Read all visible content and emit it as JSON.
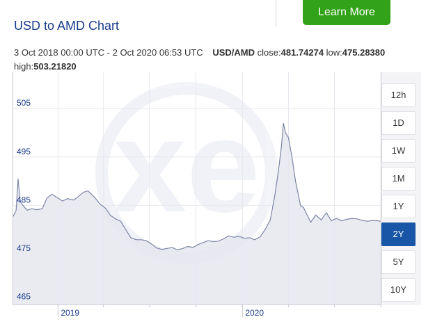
{
  "header": {
    "cta_label": "Learn More"
  },
  "title": "USD to AMD Chart",
  "meta": {
    "period": "3 Oct 2018 00:00 UTC - 2 Oct 2020 06:53 UTC",
    "pair": "USD/AMD",
    "close_label": "close:",
    "close_value": "481.74274",
    "low_label": "low:",
    "low_value": "475.28380",
    "high_label": "high:",
    "high_value": "503.21820"
  },
  "ranges": [
    "12h",
    "1D",
    "1W",
    "1M",
    "1Y",
    "2Y",
    "5Y",
    "10Y"
  ],
  "active_range": "2Y",
  "watermark": "xe",
  "colors": {
    "line": "#7e85a6",
    "fill": "#e6e7ef",
    "accent": "#1a56a8",
    "cta": "#32a318",
    "title": "#1a3c8c"
  },
  "chart_data": {
    "type": "area",
    "title": "USD to AMD Chart",
    "xlabel": "",
    "ylabel": "",
    "ylim": [
      464.5,
      512.5
    ],
    "xlim": [
      "2018-10-03",
      "2020-10-02"
    ],
    "yticks": [
      465,
      475,
      485,
      495,
      505
    ],
    "xticks": [
      {
        "date": "2019-01-01",
        "label": "2019"
      },
      {
        "date": "2020-01-01",
        "label": "2020"
      }
    ],
    "grid": true,
    "legend": "none",
    "series": [
      {
        "x": [
          "2018-10-03",
          "2018-10-10",
          "2018-10-14",
          "2018-10-18",
          "2018-10-25",
          "2018-11-01",
          "2018-11-10",
          "2018-11-20",
          "2018-12-01",
          "2018-12-10",
          "2018-12-20",
          "2019-01-01",
          "2019-01-10",
          "2019-01-20",
          "2019-02-01",
          "2019-02-10",
          "2019-02-20",
          "2019-03-01",
          "2019-03-15",
          "2019-03-25",
          "2019-04-05",
          "2019-04-15",
          "2019-04-25",
          "2019-05-05",
          "2019-05-15",
          "2019-05-25",
          "2019-06-05",
          "2019-06-15",
          "2019-06-25",
          "2019-07-05",
          "2019-07-15",
          "2019-07-25",
          "2019-08-05",
          "2019-08-15",
          "2019-08-25",
          "2019-09-05",
          "2019-09-15",
          "2019-09-25",
          "2019-10-05",
          "2019-10-15",
          "2019-10-25",
          "2019-11-05",
          "2019-11-15",
          "2019-11-25",
          "2019-12-05",
          "2019-12-15",
          "2019-12-25",
          "2020-01-05",
          "2020-01-15",
          "2020-01-25",
          "2020-02-05",
          "2020-02-15",
          "2020-02-25",
          "2020-03-05",
          "2020-03-12",
          "2020-03-18",
          "2020-03-22",
          "2020-03-26",
          "2020-04-01",
          "2020-04-08",
          "2020-04-15",
          "2020-04-25",
          "2020-05-01",
          "2020-05-08",
          "2020-05-15",
          "2020-05-25",
          "2020-06-05",
          "2020-06-15",
          "2020-06-25",
          "2020-07-05",
          "2020-07-15",
          "2020-07-25",
          "2020-08-05",
          "2020-08-15",
          "2020-08-25",
          "2020-09-05",
          "2020-09-15",
          "2020-09-25",
          "2020-10-02"
        ],
        "values": [
          482.5,
          483.9,
          490.5,
          485.8,
          484.8,
          484.0,
          484.3,
          484.1,
          484.3,
          486.5,
          487.3,
          486.5,
          485.9,
          486.4,
          486.1,
          486.8,
          487.7,
          488.0,
          486.6,
          485.3,
          484.4,
          482.9,
          482.2,
          481.7,
          480.0,
          478.3,
          477.9,
          477.9,
          477.7,
          477.0,
          476.2,
          475.9,
          476.1,
          476.3,
          475.8,
          476.1,
          476.5,
          476.3,
          476.9,
          477.3,
          477.7,
          477.5,
          477.6,
          478.1,
          478.7,
          478.4,
          478.6,
          478.2,
          478.3,
          477.9,
          478.5,
          480.0,
          482.0,
          487.0,
          492.0,
          497.0,
          502.0,
          500.0,
          499.0,
          495.0,
          490.0,
          485.0,
          484.5,
          483.0,
          481.5,
          483.0,
          482.0,
          483.5,
          481.8,
          482.3,
          481.8,
          482.1,
          482.3,
          482.2,
          481.9,
          481.7,
          481.9,
          481.8,
          481.7
        ]
      }
    ]
  }
}
